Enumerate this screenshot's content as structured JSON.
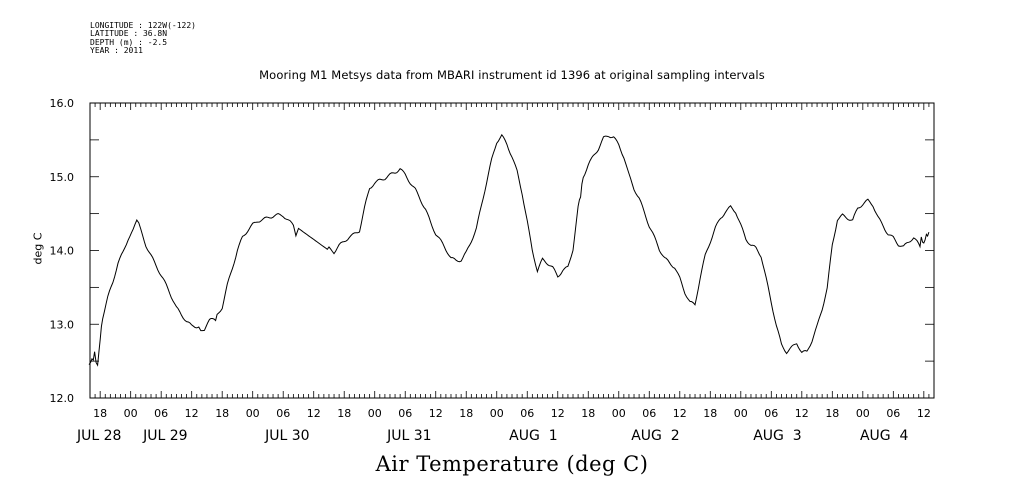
{
  "meta": {
    "longitude": "LONGITUDE : 122W(-122)",
    "latitude": "LATITUDE : 36.8N",
    "depth": "DEPTH (m) : -2.5",
    "year": "YEAR : 2011"
  },
  "chart_data": {
    "type": "line",
    "title": "Mooring M1 Metsys data from MBARI instrument id 1396 at original sampling intervals",
    "xlabel": "Air Temperature (deg C)",
    "ylabel": "deg C",
    "ylim": [
      12.0,
      16.0
    ],
    "xlim_hours": [
      -8,
      154
    ],
    "y_ticks": [
      "12.0",
      "13.0",
      "14.0",
      "15.0",
      "16.0"
    ],
    "x_hour_ticks": [
      {
        "h": -6,
        "label": "18"
      },
      {
        "h": 0,
        "label": "00"
      },
      {
        "h": 6,
        "label": "06"
      },
      {
        "h": 12,
        "label": "12"
      },
      {
        "h": 18,
        "label": "18"
      },
      {
        "h": 24,
        "label": "00"
      },
      {
        "h": 30,
        "label": "06"
      },
      {
        "h": 36,
        "label": "12"
      },
      {
        "h": 42,
        "label": "18"
      },
      {
        "h": 48,
        "label": "00"
      },
      {
        "h": 54,
        "label": "06"
      },
      {
        "h": 60,
        "label": "12"
      },
      {
        "h": 66,
        "label": "18"
      },
      {
        "h": 72,
        "label": "00"
      },
      {
        "h": 78,
        "label": "06"
      },
      {
        "h": 84,
        "label": "12"
      },
      {
        "h": 90,
        "label": "18"
      },
      {
        "h": 96,
        "label": "00"
      },
      {
        "h": 102,
        "label": "06"
      },
      {
        "h": 108,
        "label": "12"
      },
      {
        "h": 114,
        "label": "18"
      },
      {
        "h": 120,
        "label": "00"
      },
      {
        "h": 126,
        "label": "06"
      },
      {
        "h": 132,
        "label": "12"
      },
      {
        "h": 138,
        "label": "18"
      },
      {
        "h": 144,
        "label": "00"
      },
      {
        "h": 150,
        "label": "06"
      },
      {
        "h": 156,
        "label": "12"
      }
    ],
    "date_labels": [
      {
        "h": -8,
        "label": "JUL 28"
      },
      {
        "h": 5,
        "label": "JUL 29"
      },
      {
        "h": 29,
        "label": "JUL 30"
      },
      {
        "h": 53,
        "label": "JUL 31"
      },
      {
        "h": 77,
        "label": "AUG  1"
      },
      {
        "h": 101,
        "label": "AUG  2"
      },
      {
        "h": 125,
        "label": "AUG  3"
      },
      {
        "h": 146,
        "label": "AUG  4"
      }
    ],
    "series": [
      {
        "color": "#000000",
        "points": [
          [
            -8.2,
            12.45
          ],
          [
            -7.6,
            12.5
          ],
          [
            -7.1,
            12.6
          ],
          [
            -6.5,
            12.45
          ],
          [
            -6.0,
            12.8
          ],
          [
            -5.5,
            13.1
          ],
          [
            -4.5,
            13.35
          ],
          [
            -3.5,
            13.55
          ],
          [
            -2.5,
            13.8
          ],
          [
            -1.5,
            13.95
          ],
          [
            -0.5,
            14.15
          ],
          [
            0.5,
            14.28
          ],
          [
            1.2,
            14.4
          ],
          [
            2.0,
            14.3
          ],
          [
            3.0,
            14.1
          ],
          [
            4.0,
            13.95
          ],
          [
            5.0,
            13.8
          ],
          [
            6.0,
            13.65
          ],
          [
            7.0,
            13.5
          ],
          [
            8.0,
            13.35
          ],
          [
            9.0,
            13.2
          ],
          [
            10.0,
            13.12
          ],
          [
            11.0,
            13.05
          ],
          [
            12.0,
            13.0
          ],
          [
            13.0,
            13.0
          ],
          [
            13.8,
            12.9
          ],
          [
            14.5,
            12.95
          ],
          [
            15.5,
            13.05
          ],
          [
            17.0,
            13.1
          ],
          [
            18.0,
            13.2
          ],
          [
            19.0,
            13.5
          ],
          [
            20.0,
            13.75
          ],
          [
            21.0,
            14.0
          ],
          [
            22.0,
            14.2
          ],
          [
            23.0,
            14.3
          ],
          [
            24.0,
            14.38
          ],
          [
            25.0,
            14.42
          ],
          [
            27.0,
            14.43
          ],
          [
            29.0,
            14.45
          ],
          [
            30.0,
            14.45
          ],
          [
            31.0,
            14.4
          ],
          [
            32.0,
            14.35
          ],
          [
            32.5,
            14.2
          ],
          [
            33.0,
            14.3
          ],
          [
            34.0,
            14.25
          ],
          [
            37.0,
            14.1
          ],
          [
            39.0,
            14.0
          ],
          [
            40.0,
            13.95
          ],
          [
            41.0,
            14.05
          ],
          [
            43.0,
            14.2
          ],
          [
            45.0,
            14.3
          ],
          [
            46.0,
            14.6
          ],
          [
            47.0,
            14.85
          ],
          [
            48.0,
            14.9
          ],
          [
            50.0,
            14.95
          ],
          [
            52.0,
            15.05
          ],
          [
            53.0,
            15.12
          ],
          [
            54.0,
            15.05
          ],
          [
            55.0,
            14.95
          ],
          [
            56.0,
            14.85
          ],
          [
            57.0,
            14.7
          ],
          [
            58.0,
            14.55
          ],
          [
            59.0,
            14.35
          ],
          [
            60.0,
            14.2
          ],
          [
            61.0,
            14.1
          ],
          [
            62.0,
            14.0
          ],
          [
            63.0,
            13.9
          ],
          [
            64.0,
            13.88
          ],
          [
            65.0,
            13.9
          ],
          [
            66.0,
            14.0
          ],
          [
            67.0,
            14.15
          ],
          [
            68.0,
            14.3
          ],
          [
            69.0,
            14.6
          ],
          [
            70.0,
            14.9
          ],
          [
            71.0,
            15.2
          ],
          [
            72.0,
            15.45
          ],
          [
            73.0,
            15.55
          ],
          [
            74.0,
            15.45
          ],
          [
            75.0,
            15.3
          ],
          [
            76.0,
            15.1
          ],
          [
            77.0,
            14.8
          ],
          [
            78.0,
            14.4
          ],
          [
            79.0,
            14.0
          ],
          [
            80.0,
            13.7
          ],
          [
            81.0,
            13.85
          ],
          [
            82.0,
            13.8
          ],
          [
            83.0,
            13.75
          ],
          [
            84.0,
            13.65
          ],
          [
            85.0,
            13.75
          ],
          [
            86.0,
            13.8
          ],
          [
            87.0,
            14.05
          ],
          [
            88.0,
            14.6
          ],
          [
            88.5,
            14.75
          ],
          [
            89.0,
            15.0
          ],
          [
            90.0,
            15.15
          ],
          [
            91.0,
            15.25
          ],
          [
            92.0,
            15.35
          ],
          [
            93.0,
            15.5
          ],
          [
            94.0,
            15.55
          ],
          [
            95.0,
            15.55
          ],
          [
            96.0,
            15.45
          ],
          [
            97.0,
            15.3
          ],
          [
            98.0,
            15.05
          ],
          [
            99.0,
            14.85
          ],
          [
            100.0,
            14.7
          ],
          [
            101.0,
            14.5
          ],
          [
            102.0,
            14.3
          ],
          [
            103.0,
            14.15
          ],
          [
            104.0,
            14.0
          ],
          [
            105.0,
            13.9
          ],
          [
            106.0,
            13.85
          ],
          [
            107.0,
            13.8
          ],
          [
            108.0,
            13.65
          ],
          [
            109.0,
            13.45
          ],
          [
            110.0,
            13.3
          ],
          [
            111.0,
            13.25
          ],
          [
            112.0,
            13.6
          ],
          [
            113.0,
            13.9
          ],
          [
            114.0,
            14.1
          ],
          [
            115.0,
            14.3
          ],
          [
            116.0,
            14.45
          ],
          [
            117.0,
            14.55
          ],
          [
            118.0,
            14.62
          ],
          [
            119.0,
            14.55
          ],
          [
            120.0,
            14.35
          ],
          [
            121.0,
            14.15
          ],
          [
            122.0,
            14.05
          ],
          [
            123.0,
            14.0
          ],
          [
            124.0,
            13.9
          ],
          [
            125.0,
            13.6
          ],
          [
            126.0,
            13.3
          ],
          [
            127.0,
            13.0
          ],
          [
            128.0,
            12.75
          ],
          [
            129.0,
            12.65
          ],
          [
            130.0,
            12.7
          ],
          [
            131.0,
            12.75
          ],
          [
            132.0,
            12.6
          ],
          [
            133.0,
            12.6
          ],
          [
            134.0,
            12.75
          ],
          [
            135.0,
            12.95
          ],
          [
            136.0,
            13.2
          ],
          [
            137.0,
            13.5
          ],
          [
            138.0,
            14.1
          ],
          [
            139.0,
            14.45
          ],
          [
            140.0,
            14.5
          ],
          [
            141.0,
            14.45
          ],
          [
            142.0,
            14.4
          ],
          [
            143.0,
            14.55
          ],
          [
            144.0,
            14.6
          ],
          [
            145.0,
            14.65
          ],
          [
            146.0,
            14.6
          ],
          [
            147.0,
            14.45
          ],
          [
            148.0,
            14.35
          ],
          [
            149.0,
            14.25
          ],
          [
            150.0,
            14.2
          ],
          [
            151.0,
            14.1
          ],
          [
            152.0,
            14.05
          ],
          [
            153.0,
            14.1
          ],
          [
            154.0,
            14.15
          ],
          [
            155.0,
            14.05
          ],
          [
            155.5,
            14.15
          ],
          [
            156.0,
            14.1
          ],
          [
            156.5,
            14.2
          ],
          [
            157.0,
            14.25
          ]
        ]
      }
    ]
  }
}
